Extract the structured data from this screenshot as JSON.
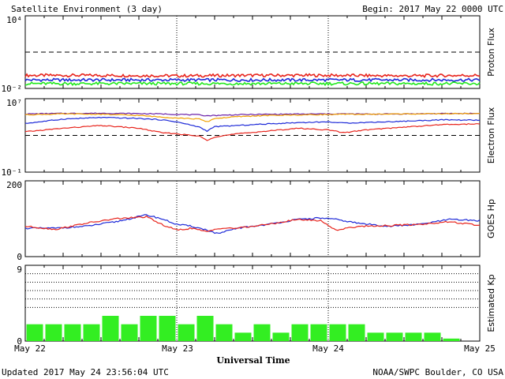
{
  "header": {
    "title": "Satellite Environment (3 day)",
    "begin": "Begin:  2017 May 22 0000 UTC"
  },
  "footer": {
    "updated": "Updated 2017 May 24 23:56:04 UTC",
    "source": "NOAA/SWPC Boulder, CO USA"
  },
  "x_axis": {
    "label": "Universal Time",
    "ticks": [
      "May 22",
      "May 23",
      "May 24",
      "May 25"
    ]
  },
  "colors": {
    "red": "#e8241c",
    "blue": "#1e2ad8",
    "green": "#22e81e",
    "orange": "#f0a000",
    "purple": "#6b21a8",
    "kp_green": "#33ee22"
  },
  "chart_data": [
    {
      "type": "line",
      "name": "proton-flux",
      "ylabel": "Proton Flux",
      "yscale": "log",
      "ylim": [
        0.01,
        10000
      ],
      "yticks": [
        "10⁴",
        "10⁻²"
      ],
      "threshold": 10,
      "x": [
        0,
        0.5,
        1,
        1.5,
        2,
        2.5,
        3
      ],
      "series": [
        {
          "color": "red",
          "values": [
            0.12,
            0.12,
            0.11,
            0.12,
            0.12,
            0.11,
            0.12
          ]
        },
        {
          "color": "blue",
          "values": [
            0.05,
            0.05,
            0.05,
            0.05,
            0.05,
            0.05,
            0.05
          ]
        },
        {
          "color": "green",
          "values": [
            0.025,
            0.025,
            0.025,
            0.025,
            0.025,
            0.025,
            0.025
          ]
        }
      ]
    },
    {
      "type": "line",
      "name": "electron-flux",
      "ylabel": "Electron Flux",
      "yscale": "log",
      "ylim": [
        0.1,
        10000000
      ],
      "yticks": [
        "10⁷",
        "10⁻¹"
      ],
      "threshold": 1000,
      "x": [
        0,
        0.25,
        0.5,
        0.75,
        0.9,
        1,
        1.15,
        1.2,
        1.25,
        1.4,
        1.6,
        1.8,
        2,
        2.1,
        2.25,
        2.5,
        2.75,
        3
      ],
      "series": [
        {
          "color": "purple",
          "values": [
            220000,
            250000,
            260000,
            240000,
            220000,
            200000,
            170000,
            140000,
            150000,
            180000,
            200000,
            210000,
            220000,
            220000,
            210000,
            220000,
            240000,
            250000
          ]
        },
        {
          "color": "orange",
          "values": [
            180000,
            220000,
            200000,
            150000,
            100000,
            80000,
            60000,
            30000,
            70000,
            110000,
            150000,
            170000,
            190000,
            200000,
            200000,
            220000,
            230000,
            240000
          ]
        },
        {
          "color": "blue",
          "values": [
            20000,
            60000,
            90000,
            70000,
            50000,
            30000,
            8000,
            3000,
            9000,
            12000,
            18000,
            25000,
            30000,
            22000,
            26000,
            35000,
            50000,
            45000
          ]
        },
        {
          "color": "red",
          "values": [
            2500,
            6000,
            12000,
            6000,
            2000,
            1500,
            800,
            300,
            700,
            1500,
            3000,
            6000,
            4000,
            2000,
            4000,
            8000,
            15000,
            18000
          ]
        }
      ]
    },
    {
      "type": "line",
      "name": "goes-hp",
      "ylabel": "GOES Hp",
      "ylim": [
        0,
        200
      ],
      "yticks": [
        "200",
        "0"
      ],
      "x": [
        0,
        0.2,
        0.4,
        0.6,
        0.8,
        0.9,
        1,
        1.1,
        1.2,
        1.27,
        1.4,
        1.6,
        1.8,
        1.95,
        2.05,
        2.2,
        2.4,
        2.6,
        2.8,
        3
      ],
      "series": [
        {
          "color": "blue",
          "values": [
            75,
            75,
            80,
            92,
            110,
            100,
            85,
            80,
            70,
            60,
            75,
            85,
            98,
            102,
            98,
            88,
            80,
            85,
            98,
            95
          ]
        },
        {
          "color": "red",
          "values": [
            80,
            72,
            88,
            100,
            105,
            85,
            70,
            75,
            65,
            75,
            75,
            85,
            98,
            95,
            70,
            80,
            82,
            85,
            92,
            82
          ]
        }
      ]
    },
    {
      "type": "bar",
      "name": "estimated-kp",
      "ylabel": "Estimated Kp",
      "ylim": [
        0,
        9
      ],
      "yticks": [
        "9",
        "0"
      ],
      "gridlines": [
        4,
        5,
        6,
        7,
        8,
        9
      ],
      "values": [
        2,
        2,
        2,
        2,
        3,
        2,
        3,
        3,
        2,
        3,
        2,
        1,
        2,
        1,
        2,
        2,
        2,
        2,
        1,
        1,
        1,
        1,
        0.3,
        0
      ]
    }
  ]
}
